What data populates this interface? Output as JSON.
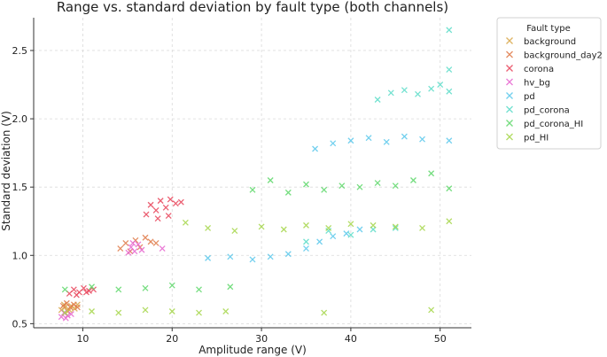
{
  "chart_data": {
    "type": "scatter",
    "title": "Range vs. standard deviation by fault type (both channels)",
    "xlabel": "Amplitude range (V)",
    "ylabel": "Standard deviation (V)",
    "xlim": [
      4.5,
      53.5
    ],
    "ylim": [
      0.47,
      2.74
    ],
    "xticks": [
      10,
      20,
      30,
      40,
      50
    ],
    "yticks": [
      0.5,
      1.0,
      1.5,
      2.0,
      2.5
    ],
    "grid": true,
    "marker": "x",
    "legend": {
      "title": "Fault type",
      "placement": "outside-right"
    },
    "series": [
      {
        "name": "background",
        "color": "#d9a84a",
        "points": [
          [
            7.6,
            0.6
          ],
          [
            8.0,
            0.62
          ],
          [
            8.3,
            0.59
          ],
          [
            8.7,
            0.63
          ],
          [
            9.1,
            0.61
          ],
          [
            9.4,
            0.64
          ],
          [
            7.9,
            0.64
          ],
          [
            8.5,
            0.6
          ]
        ]
      },
      {
        "name": "background_day2",
        "color": "#e07b4a",
        "points": [
          [
            7.8,
            0.63
          ],
          [
            8.2,
            0.65
          ],
          [
            8.6,
            0.62
          ],
          [
            9.0,
            0.64
          ],
          [
            9.4,
            0.62
          ],
          [
            14.2,
            1.05
          ],
          [
            14.8,
            1.09
          ],
          [
            15.3,
            1.03
          ],
          [
            15.9,
            1.11
          ],
          [
            16.4,
            1.06
          ],
          [
            17.0,
            1.13
          ],
          [
            17.6,
            1.1
          ],
          [
            18.2,
            1.09
          ]
        ]
      },
      {
        "name": "corona",
        "color": "#e8445a",
        "points": [
          [
            8.5,
            0.72
          ],
          [
            9.0,
            0.75
          ],
          [
            9.6,
            0.73
          ],
          [
            10.1,
            0.76
          ],
          [
            10.7,
            0.74
          ],
          [
            11.2,
            0.75
          ],
          [
            9.3,
            0.71
          ],
          [
            10.4,
            0.73
          ],
          [
            17.1,
            1.3
          ],
          [
            17.6,
            1.37
          ],
          [
            18.2,
            1.33
          ],
          [
            18.7,
            1.4
          ],
          [
            19.3,
            1.35
          ],
          [
            19.8,
            1.41
          ],
          [
            20.4,
            1.38
          ],
          [
            21.0,
            1.39
          ],
          [
            18.4,
            1.27
          ],
          [
            19.6,
            1.29
          ]
        ]
      },
      {
        "name": "hv_bg",
        "color": "#e766d0",
        "points": [
          [
            7.6,
            0.55
          ],
          [
            7.9,
            0.58
          ],
          [
            8.3,
            0.56
          ],
          [
            8.7,
            0.57
          ],
          [
            8.1,
            0.54
          ],
          [
            15.1,
            1.02
          ],
          [
            15.4,
            1.06
          ],
          [
            15.8,
            1.03
          ],
          [
            16.2,
            1.08
          ],
          [
            16.6,
            1.04
          ],
          [
            15.6,
            1.09
          ],
          [
            18.9,
            1.05
          ]
        ]
      },
      {
        "name": "pd",
        "color": "#5bc8ec",
        "points": [
          [
            24.0,
            0.98
          ],
          [
            26.5,
            0.99
          ],
          [
            29.0,
            0.97
          ],
          [
            31.0,
            0.99
          ],
          [
            33.0,
            1.01
          ],
          [
            35.0,
            1.05
          ],
          [
            36.5,
            1.1
          ],
          [
            38.0,
            1.14
          ],
          [
            39.5,
            1.16
          ],
          [
            41.0,
            1.19
          ],
          [
            36.0,
            1.78
          ],
          [
            38.0,
            1.82
          ],
          [
            40.0,
            1.84
          ],
          [
            42.0,
            1.86
          ],
          [
            44.0,
            1.83
          ],
          [
            46.0,
            1.87
          ],
          [
            48.0,
            1.85
          ],
          [
            51.0,
            1.84
          ]
        ]
      },
      {
        "name": "pd_corona",
        "color": "#5bdcc8",
        "points": [
          [
            35.0,
            1.1
          ],
          [
            37.5,
            1.18
          ],
          [
            40.0,
            1.15
          ],
          [
            42.5,
            1.19
          ],
          [
            45.0,
            1.2
          ],
          [
            43.0,
            2.14
          ],
          [
            44.5,
            2.19
          ],
          [
            46.0,
            2.21
          ],
          [
            47.5,
            2.18
          ],
          [
            49.0,
            2.22
          ],
          [
            50.0,
            2.25
          ],
          [
            51.0,
            2.2
          ],
          [
            51.0,
            2.36
          ],
          [
            51.0,
            2.65
          ]
        ]
      },
      {
        "name": "pd_corona_HI",
        "color": "#5ed86a",
        "points": [
          [
            8.0,
            0.75
          ],
          [
            11.0,
            0.77
          ],
          [
            14.0,
            0.75
          ],
          [
            17.0,
            0.76
          ],
          [
            20.0,
            0.78
          ],
          [
            23.0,
            0.75
          ],
          [
            26.5,
            0.77
          ],
          [
            29.0,
            1.48
          ],
          [
            31.0,
            1.55
          ],
          [
            33.0,
            1.46
          ],
          [
            35.0,
            1.52
          ],
          [
            37.0,
            1.48
          ],
          [
            39.0,
            1.51
          ],
          [
            41.0,
            1.5
          ],
          [
            43.0,
            1.53
          ],
          [
            45.0,
            1.51
          ],
          [
            47.0,
            1.55
          ],
          [
            49.0,
            1.6
          ],
          [
            51.0,
            1.49
          ]
        ]
      },
      {
        "name": "pd_HI",
        "color": "#a5d64a",
        "points": [
          [
            8.0,
            0.58
          ],
          [
            11.0,
            0.59
          ],
          [
            14.0,
            0.58
          ],
          [
            17.0,
            0.6
          ],
          [
            20.0,
            0.59
          ],
          [
            23.0,
            0.58
          ],
          [
            26.0,
            0.59
          ],
          [
            21.5,
            1.24
          ],
          [
            24.0,
            1.2
          ],
          [
            27.0,
            1.18
          ],
          [
            30.0,
            1.21
          ],
          [
            32.5,
            1.19
          ],
          [
            35.0,
            1.22
          ],
          [
            37.5,
            1.2
          ],
          [
            40.0,
            1.23
          ],
          [
            42.5,
            1.22
          ],
          [
            45.0,
            1.21
          ],
          [
            48.0,
            1.2
          ],
          [
            51.0,
            1.25
          ],
          [
            49.0,
            0.6
          ],
          [
            37.0,
            0.58
          ]
        ]
      }
    ]
  }
}
